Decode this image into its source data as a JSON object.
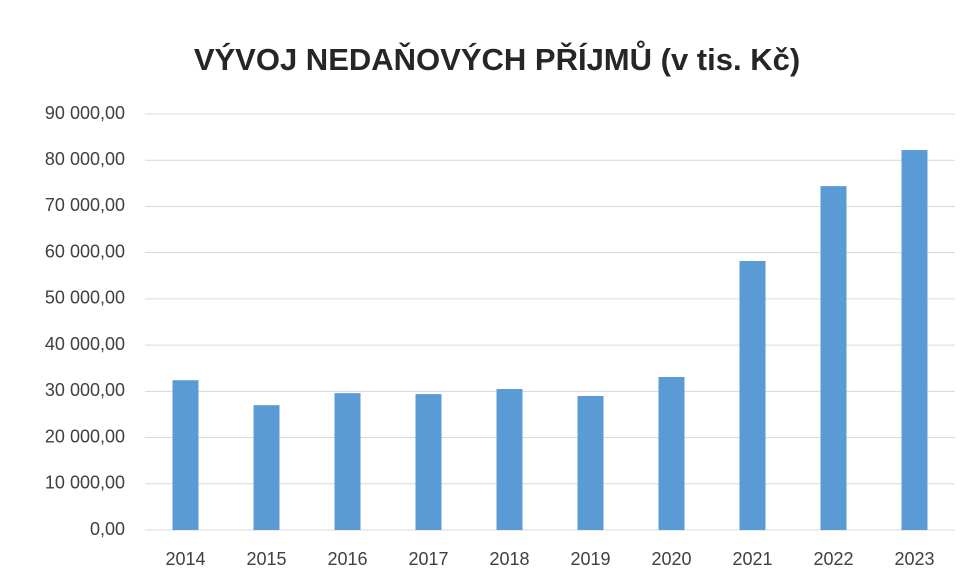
{
  "chart_data": {
    "type": "bar",
    "title": "VÝVOJ NEDAŇOVÝCH PŘÍJMŮ (v tis. Kč)",
    "categories": [
      "2014",
      "2015",
      "2016",
      "2017",
      "2018",
      "2019",
      "2020",
      "2021",
      "2022",
      "2023"
    ],
    "values": [
      32400,
      27000,
      29600,
      29400,
      30500,
      29000,
      33100,
      58200,
      74400,
      82200
    ],
    "color": "#5b9bd5",
    "ylim": [
      0,
      90000
    ],
    "yticks": [
      {
        "value": 0,
        "label": "0,00"
      },
      {
        "value": 10000,
        "label": "10 000,00"
      },
      {
        "value": 20000,
        "label": "20 000,00"
      },
      {
        "value": 30000,
        "label": "30 000,00"
      },
      {
        "value": 40000,
        "label": "40 000,00"
      },
      {
        "value": 50000,
        "label": "50 000,00"
      },
      {
        "value": 60000,
        "label": "60 000,00"
      },
      {
        "value": 70000,
        "label": "70 000,00"
      },
      {
        "value": 80000,
        "label": "80 000,00"
      },
      {
        "value": 90000,
        "label": "90 000,00"
      }
    ],
    "grid": true
  }
}
